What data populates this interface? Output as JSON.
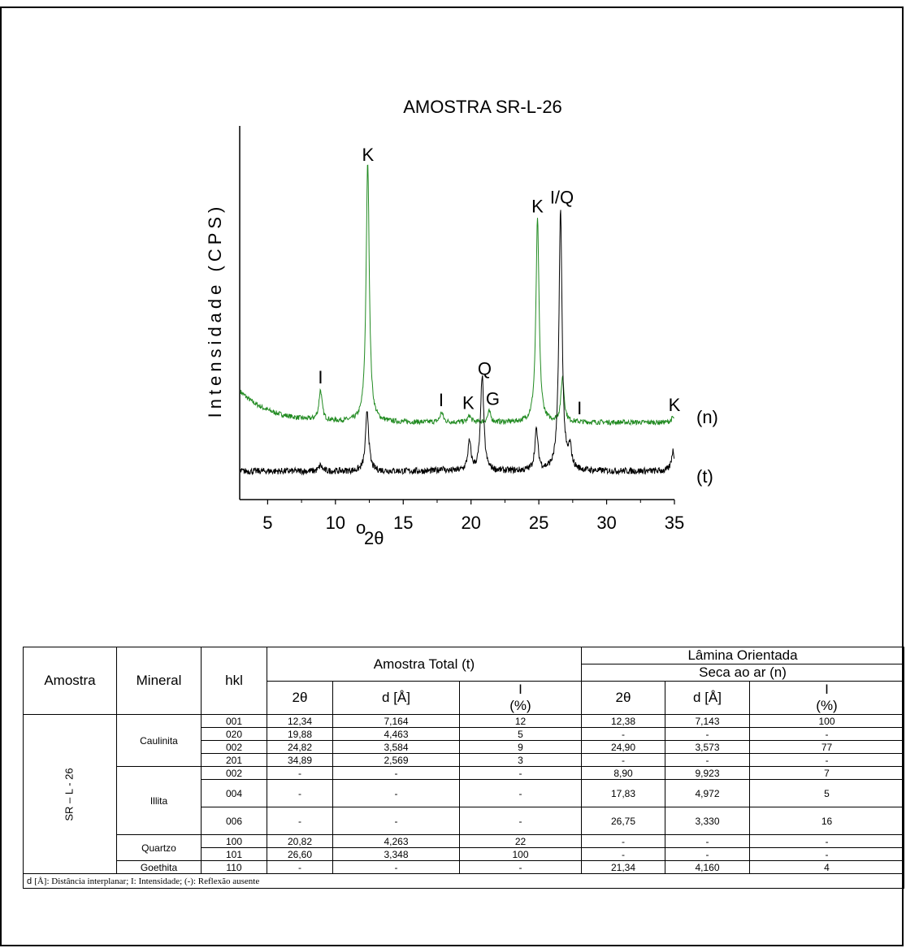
{
  "chart_data": {
    "type": "line",
    "title": "AMOSTRA SR-L-26",
    "ylabel": "Intensidade (CPS)",
    "xlabel_prefix": "o",
    "xlabel_main": "2θ",
    "xlim": [
      3,
      35
    ],
    "xticks": [
      "5",
      "10",
      "15",
      "20",
      "25",
      "30",
      "35"
    ],
    "series": [
      {
        "name": "(n)",
        "color": "#228b22",
        "baseline": 0.38,
        "peaks": [
          [
            8.9,
            0.37
          ],
          [
            12.38,
            3.2
          ],
          [
            17.83,
            0.12
          ],
          [
            19.88,
            0.08
          ],
          [
            21.34,
            0.13
          ],
          [
            24.9,
            2.5
          ],
          [
            26.75,
            0.55
          ],
          [
            34.89,
            0.06
          ]
        ]
      },
      {
        "name": "(t)",
        "color": "#000000",
        "baseline": 0.0,
        "peaks": [
          [
            8.9,
            0.07
          ],
          [
            12.34,
            0.75
          ],
          [
            17.83,
            0.04
          ],
          [
            19.88,
            0.35
          ],
          [
            20.82,
            1.18
          ],
          [
            24.82,
            0.5
          ],
          [
            26.6,
            3.2
          ],
          [
            27.3,
            0.25
          ],
          [
            34.89,
            0.25
          ]
        ]
      }
    ],
    "peak_labels": [
      {
        "text": "K",
        "x": 12.4,
        "series": "(n)"
      },
      {
        "text": "I",
        "x": 8.9,
        "series": "(n)"
      },
      {
        "text": "I",
        "x": 17.8,
        "series": "(n)"
      },
      {
        "text": "K",
        "x": 19.8,
        "series": "(n)"
      },
      {
        "text": "Q",
        "x": 21.0,
        "series": "(n)"
      },
      {
        "text": "G",
        "x": 21.6,
        "series": "(n)"
      },
      {
        "text": "K",
        "x": 24.9,
        "series": "(n)"
      },
      {
        "text": "I/Q",
        "x": 26.7,
        "series": "(t)"
      },
      {
        "text": "I",
        "x": 28.0,
        "series": "(n)"
      },
      {
        "text": "K",
        "x": 35.0,
        "series": "(n)"
      }
    ]
  },
  "table": {
    "headers": {
      "amostra": "Amostra",
      "mineral": "Mineral",
      "hkl": "hkl",
      "total": "Amostra Total (t)",
      "lamina": "Lâmina Orientada",
      "seca": "Seca ao ar (n)",
      "two_theta": "2θ",
      "d": "d [Å]",
      "i_top": "I",
      "i_bottom": "(%)"
    },
    "sample": "SR – L - 26",
    "groups": [
      {
        "mineral": "Caulinita",
        "rows": [
          {
            "hkl": "001",
            "t_2theta": "12,34",
            "t_d": "7,164",
            "t_i": "12",
            "n_2theta": "12,38",
            "n_d": "7,143",
            "n_i": "100"
          },
          {
            "hkl": "020",
            "t_2theta": "19,88",
            "t_d": "4,463",
            "t_i": "5",
            "n_2theta": "-",
            "n_d": "-",
            "n_i": "-"
          },
          {
            "hkl": "002",
            "t_2theta": "24,82",
            "t_d": "3,584",
            "t_i": "9",
            "n_2theta": "24,90",
            "n_d": "3,573",
            "n_i": "77"
          },
          {
            "hkl": "201",
            "t_2theta": "34,89",
            "t_d": "2,569",
            "t_i": "3",
            "n_2theta": "-",
            "n_d": "-",
            "n_i": "-"
          }
        ]
      },
      {
        "mineral": "Illita",
        "rows": [
          {
            "hkl": "002",
            "t_2theta": "-",
            "t_d": "-",
            "t_i": "-",
            "n_2theta": "8,90",
            "n_d": "9,923",
            "n_i": "7"
          },
          {
            "hkl": "004",
            "t_2theta": "-",
            "t_d": "-",
            "t_i": "-",
            "n_2theta": "17,83",
            "n_d": "4,972",
            "n_i": "5"
          },
          {
            "hkl": "006",
            "t_2theta": "-",
            "t_d": "-",
            "t_i": "-",
            "n_2theta": "26,75",
            "n_d": "3,330",
            "n_i": "16"
          }
        ]
      },
      {
        "mineral": "Quartzo",
        "rows": [
          {
            "hkl": "100",
            "t_2theta": "20,82",
            "t_d": "4,263",
            "t_i": "22",
            "n_2theta": "-",
            "n_d": "-",
            "n_i": "-"
          },
          {
            "hkl": "101",
            "t_2theta": "26,60",
            "t_d": "3,348",
            "t_i": "100",
            "n_2theta": "-",
            "n_d": "-",
            "n_i": "-"
          }
        ]
      },
      {
        "mineral": "Goethita",
        "rows": [
          {
            "hkl": "110",
            "t_2theta": "-",
            "t_d": "-",
            "t_i": "-",
            "n_2theta": "21,34",
            "n_d": "4,160",
            "n_i": "4"
          }
        ]
      }
    ],
    "footnote_prefix": "d ",
    "footnote": "[Å]: Distância interplanar; I: Intensidade; (-): Reflexão ausente"
  }
}
